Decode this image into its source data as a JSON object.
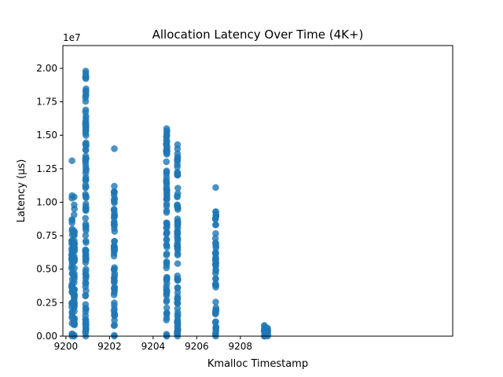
{
  "chart_data": {
    "type": "scatter",
    "title": "Allocation Latency Over Time (4K+)",
    "xlabel": "Kmalloc Timestamp",
    "ylabel": "Latency (µs)",
    "y_scale_label": "1e7",
    "xlim": [
      9199.86,
      9217.74
    ],
    "ylim": [
      0,
      2.17
    ],
    "x_ticks": [
      9200,
      9202,
      9204,
      9206,
      9208
    ],
    "x_tick_labels": [
      "9200",
      "9202",
      "9204",
      "9206",
      "9208"
    ],
    "y_ticks": [
      0,
      0.25,
      0.5,
      0.75,
      1.0,
      1.25,
      1.5,
      1.75,
      2.0
    ],
    "y_tick_labels": [
      "0.00",
      "0.25",
      "0.50",
      "0.75",
      "1.00",
      "1.25",
      "1.50",
      "1.75",
      "2.00"
    ],
    "grid": false,
    "point_color": "#1f77b4",
    "series": [
      {
        "clusters": [
          {
            "x": 9200.28,
            "y_min": 0,
            "y_max": 0.87,
            "extras": [
              1.05,
              1.03,
              1.31
            ]
          },
          {
            "x": 9200.38,
            "y_min": 0,
            "y_max": 0.98,
            "extras": [
              1.04
            ]
          },
          {
            "x": 9200.91,
            "y_min": 0,
            "y_max": 1.98,
            "extras": []
          },
          {
            "x": 9202.22,
            "y_min": 0,
            "y_max": 1.12,
            "extras": [
              1.4
            ]
          },
          {
            "x": 9204.62,
            "y_min": 0,
            "y_max": 1.55,
            "extras": []
          },
          {
            "x": 9205.12,
            "y_min": 0,
            "y_max": 1.43,
            "extras": []
          },
          {
            "x": 9206.87,
            "y_min": 0,
            "y_max": 0.93,
            "extras": [
              1.11
            ]
          },
          {
            "x": 9209.1,
            "y_min": 0,
            "y_max": 0.08,
            "extras": []
          },
          {
            "x": 9209.25,
            "y_min": 0,
            "y_max": 0.06,
            "extras": []
          }
        ]
      }
    ]
  }
}
